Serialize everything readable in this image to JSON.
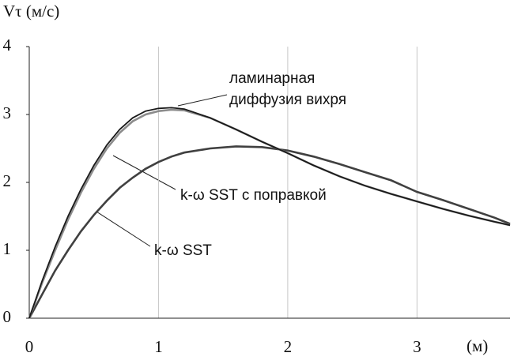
{
  "chart_data": {
    "type": "line",
    "y_label": "Vτ (м/с)",
    "x_label": "(м)",
    "x": [
      0,
      0.1,
      0.2,
      0.3,
      0.4,
      0.5,
      0.6,
      0.7,
      0.8,
      0.9,
      1.0,
      1.1,
      1.2,
      1.4,
      1.6,
      1.8,
      2.0,
      2.2,
      2.4,
      2.6,
      2.8,
      3.0,
      3.2,
      3.4,
      3.6,
      3.72
    ],
    "series": [
      {
        "label": [
          "ламинарная",
          "диффузия вихря"
        ],
        "color": "#1a1a1a",
        "values": [
          0,
          0.55,
          1.05,
          1.5,
          1.9,
          2.25,
          2.55,
          2.78,
          2.95,
          3.05,
          3.09,
          3.1,
          3.08,
          2.95,
          2.78,
          2.6,
          2.43,
          2.25,
          2.09,
          1.95,
          1.83,
          1.72,
          1.61,
          1.51,
          1.42,
          1.37
        ]
      },
      {
        "label": [
          "k-ω SST с поправкой"
        ],
        "color": "#8c8c8c",
        "values": [
          0,
          0.52,
          1.0,
          1.45,
          1.85,
          2.2,
          2.5,
          2.73,
          2.9,
          3.0,
          3.05,
          3.07,
          3.06,
          2.95,
          2.78,
          2.6,
          2.43,
          2.25,
          2.09,
          1.95,
          1.83,
          1.72,
          1.61,
          1.51,
          1.42,
          1.37
        ]
      },
      {
        "label": [
          "k-ω SST"
        ],
        "color": "#404040",
        "values": [
          0,
          0.35,
          0.7,
          1.0,
          1.28,
          1.52,
          1.73,
          1.92,
          2.07,
          2.2,
          2.3,
          2.38,
          2.44,
          2.5,
          2.53,
          2.52,
          2.47,
          2.38,
          2.27,
          2.15,
          2.03,
          1.86,
          1.74,
          1.61,
          1.48,
          1.39
        ]
      }
    ],
    "xlim": [
      0,
      3.72
    ],
    "xticks": [
      0,
      1,
      2,
      3
    ],
    "ylim": [
      0,
      4
    ],
    "yticks": [
      0,
      1,
      2,
      3,
      4
    ],
    "grid": true
  }
}
